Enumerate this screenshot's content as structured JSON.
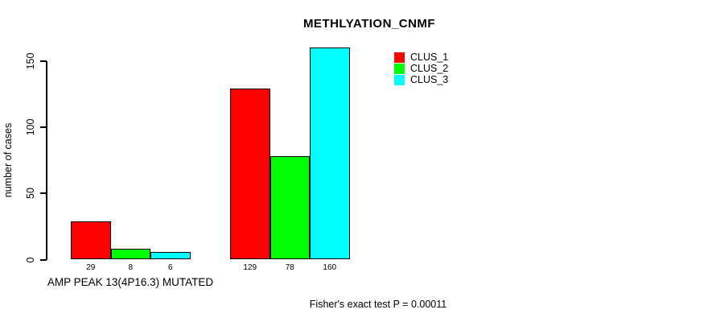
{
  "title": "METHLYATION_CNMF",
  "ylabel": "number of cases",
  "xlabel": "AMP PEAK 13(4P16.3) MUTATED",
  "footnote": "Fisher's exact test P = 0.00011",
  "chart_data": {
    "type": "bar",
    "title": "METHLYATION_CNMF",
    "xlabel": "AMP PEAK 13(4P16.3) MUTATED",
    "ylabel": "number of cases",
    "annotation": "Fisher's exact test P = 0.00011",
    "categories": [
      "AMP PEAK 13(4P16.3) MUTATED",
      ""
    ],
    "series": [
      {
        "name": "CLUS_1",
        "color": "#FF0000",
        "values": [
          29,
          129
        ]
      },
      {
        "name": "CLUS_2",
        "color": "#00FF00",
        "values": [
          8,
          78
        ]
      },
      {
        "name": "CLUS_3",
        "color": "#00FFFF",
        "values": [
          6,
          160
        ]
      }
    ],
    "bar_labels": [
      [
        "29",
        "8",
        "6"
      ],
      [
        "129",
        "78",
        "160"
      ]
    ],
    "yticks": [
      0,
      50,
      100,
      150
    ],
    "ylim": [
      0,
      160
    ],
    "grid": false,
    "legend_position": "top-right",
    "legend": [
      {
        "label": "CLUS_1",
        "color": "#FF0000"
      },
      {
        "label": "CLUS_2",
        "color": "#00FF00"
      },
      {
        "label": "CLUS_3",
        "color": "#00FFFF"
      }
    ]
  }
}
